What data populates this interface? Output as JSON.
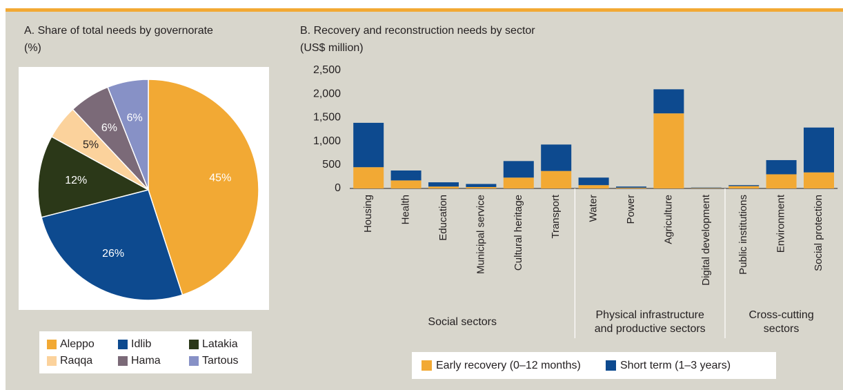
{
  "chart_data": [
    {
      "type": "pie",
      "title": "A. Share of total needs by governorate",
      "subtitle": "(%)",
      "categories": [
        "Aleppo",
        "Idlib",
        "Latakia",
        "Raqqa",
        "Hama",
        "Tartous"
      ],
      "values": [
        45,
        26,
        12,
        5,
        6,
        6
      ],
      "value_labels": [
        "45%",
        "26%",
        "12%",
        "5%",
        "6%",
        "6%"
      ],
      "colors": [
        "#f2a934",
        "#0d4a8f",
        "#2b3818",
        "#fbd29c",
        "#7b6a78",
        "#8791c6"
      ]
    },
    {
      "type": "stacked_bar",
      "title": "B. Recovery and reconstruction needs by sector",
      "subtitle": "(US$ million)",
      "groups": [
        {
          "label": [
            "Social sectors"
          ],
          "categories": [
            "Housing",
            "Health",
            "Education",
            "Municipal service",
            "Cultural heritage",
            "Transport"
          ]
        },
        {
          "label": [
            "Physical infrastructure",
            "and productive sectors"
          ],
          "categories": [
            "Water",
            "Power",
            "Agriculture",
            "Digital development"
          ]
        },
        {
          "label": [
            "Cross-cutting",
            "sectors"
          ],
          "categories": [
            "Public institutions",
            "Environment",
            "Social protection"
          ]
        }
      ],
      "series": [
        {
          "name": "Early recovery (0–12 months)",
          "color": "#f2a934",
          "values": [
            450,
            170,
            40,
            30,
            230,
            370,
            70,
            15,
            1590,
            10,
            50,
            300,
            340
          ]
        },
        {
          "name": "Short term (1–3 years)",
          "color": "#0d4a8f",
          "values": [
            940,
            210,
            90,
            65,
            350,
            560,
            160,
            25,
            510,
            10,
            20,
            300,
            950
          ]
        }
      ],
      "ylim": [
        0,
        2500
      ],
      "yticks": [
        0,
        500,
        {
          "value": 1000,
          "label": "1,000"
        },
        {
          "value": 1500,
          "label": "1,500"
        },
        {
          "value": 2000,
          "label": "2,000"
        },
        {
          "value": 2500,
          "label": "2,500"
        }
      ]
    }
  ]
}
